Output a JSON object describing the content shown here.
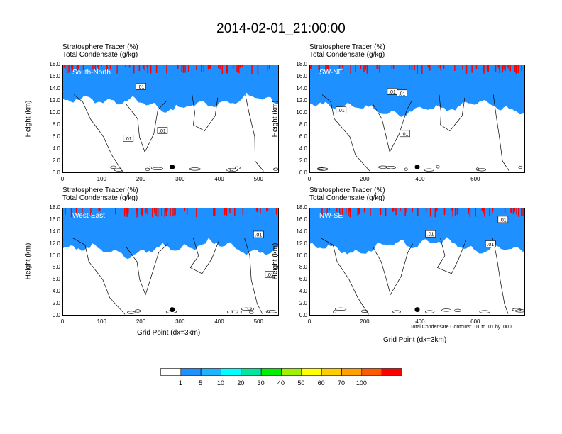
{
  "title": "2014-02-01_21:00:00",
  "panel_line1": "Stratosphere Tracer   (%)",
  "panel_line2": "Total Condensate   (g/kg)",
  "ylabel": "Height (km)",
  "xlabel": "Grid Point (dx=3km)",
  "footnote": "Total Condensate Contours: .01 to .01 by .000",
  "contour_label": ".01",
  "colorbar": {
    "labels": [
      "1",
      "5",
      "10",
      "20",
      "30",
      "40",
      "50",
      "60",
      "70",
      "100"
    ],
    "colors": [
      "#ffffff",
      "#1e90ff",
      "#1eb4ff",
      "#00ffff",
      "#00e8a0",
      "#00f000",
      "#a0f000",
      "#ffff00",
      "#ffcc00",
      "#ffa000",
      "#ff5a00",
      "#ff0000"
    ]
  },
  "chart_data": [
    {
      "type": "heatmap",
      "name": "South-North",
      "yticks": [
        "0.0",
        "2.0",
        "4.0",
        "6.0",
        "8.0",
        "10.0",
        "12.0",
        "14.0",
        "16.0",
        "18.0"
      ],
      "xticks": [
        "0",
        "100",
        "200",
        "300",
        "400",
        "500"
      ],
      "xlim": [
        0,
        552
      ],
      "ylim": [
        0,
        18
      ],
      "marker_x": 280,
      "marker_y": 1.0,
      "contour_labels_xy": [
        [
          200,
          14.3
        ],
        [
          168,
          5.7
        ],
        [
          255,
          7.0
        ]
      ]
    },
    {
      "type": "heatmap",
      "name": "SW-NE",
      "yticks": [
        "0.0",
        "2.0",
        "4.0",
        "6.0",
        "8.0",
        "10.0",
        "12.0",
        "14.0",
        "16.0",
        "18.0"
      ],
      "xticks": [
        "0",
        "200",
        "400",
        "600"
      ],
      "xlim": [
        0,
        780
      ],
      "ylim": [
        0,
        18
      ],
      "marker_x": 390,
      "marker_y": 1.0,
      "contour_labels_xy": [
        [
          115,
          10.4
        ],
        [
          300,
          13.5
        ],
        [
          335,
          13.2
        ],
        [
          345,
          6.5
        ]
      ]
    },
    {
      "type": "heatmap",
      "name": "West-East",
      "yticks": [
        "0.0",
        "2.0",
        "4.0",
        "6.0",
        "8.0",
        "10.0",
        "12.0",
        "14.0",
        "16.0",
        "18.0"
      ],
      "xticks": [
        "0",
        "100",
        "200",
        "300",
        "400",
        "500"
      ],
      "xlim": [
        0,
        552
      ],
      "ylim": [
        0,
        18
      ],
      "marker_x": 280,
      "marker_y": 1.0,
      "contour_labels_xy": [
        [
          500,
          13.5
        ],
        [
          530,
          6.8
        ]
      ]
    },
    {
      "type": "heatmap",
      "name": "NW-SE",
      "yticks": [
        "0.0",
        "2.0",
        "4.0",
        "6.0",
        "8.0",
        "10.0",
        "12.0",
        "14.0",
        "16.0",
        "18.0"
      ],
      "xticks": [
        "0",
        "200",
        "400",
        "600"
      ],
      "xlim": [
        0,
        780
      ],
      "ylim": [
        0,
        18
      ],
      "marker_x": 390,
      "marker_y": 1.0,
      "contour_labels_xy": [
        [
          438,
          13.6
        ],
        [
          700,
          16.0
        ],
        [
          655,
          11.9
        ]
      ]
    }
  ]
}
